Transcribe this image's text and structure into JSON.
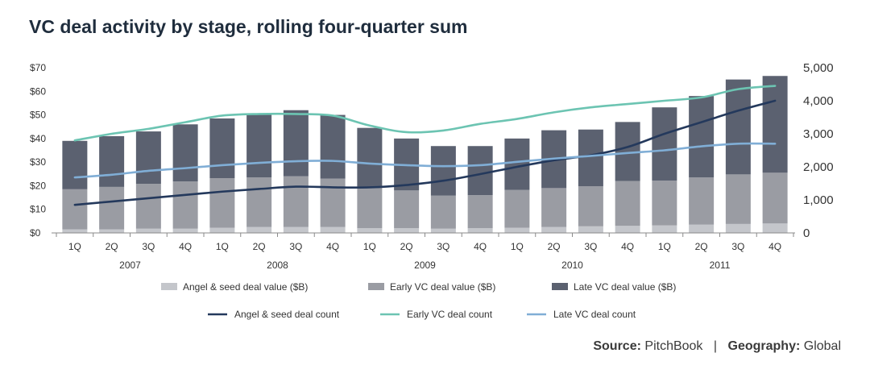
{
  "title": "VC deal activity by stage, rolling four-quarter sum",
  "source": {
    "source_label": "Source:",
    "source_value": "PitchBook",
    "separator": "|",
    "geography_label": "Geography:",
    "geography_value": "Global"
  },
  "colors": {
    "angel_bar": "#c4c6cb",
    "early_bar": "#9a9ca3",
    "late_bar": "#5b6170",
    "angel_line": "#24395c",
    "early_line": "#6cc4b2",
    "late_line": "#80aed6"
  },
  "chart_data": {
    "type": "bar",
    "categories": [
      "1Q",
      "2Q",
      "3Q",
      "4Q",
      "1Q",
      "2Q",
      "3Q",
      "4Q",
      "1Q",
      "2Q",
      "3Q",
      "4Q",
      "1Q",
      "2Q",
      "3Q",
      "4Q",
      "1Q",
      "2Q",
      "3Q",
      "4Q"
    ],
    "year_labels": [
      "2007",
      "2008",
      "2009",
      "2010",
      "2011"
    ],
    "stacked": true,
    "left_axis": {
      "ylim": [
        0,
        70
      ],
      "ticks": [
        "$0",
        "$10",
        "$20",
        "$30",
        "$40",
        "$50",
        "$60",
        "$70"
      ]
    },
    "right_axis": {
      "ylim": [
        0,
        5000
      ],
      "ticks": [
        "0",
        "1,000",
        "2,000",
        "3,000",
        "4,000",
        "5,000"
      ]
    },
    "series": [
      {
        "name": "Angel & seed deal value ($B)",
        "kind": "bar",
        "axis": "left",
        "values": [
          1.5,
          1.5,
          1.8,
          1.8,
          2.2,
          2.5,
          2.5,
          2.5,
          2,
          2,
          1.8,
          2,
          2.2,
          2.5,
          2.8,
          3,
          3.2,
          3.5,
          3.8,
          4
        ]
      },
      {
        "name": "Early VC deal value ($B)",
        "kind": "bar",
        "axis": "left",
        "values": [
          17,
          18,
          19,
          20,
          21,
          21,
          21.5,
          20.5,
          17,
          16,
          14,
          14,
          16,
          16.5,
          17,
          19,
          19,
          20,
          21,
          21.5
        ]
      },
      {
        "name": "Late VC deal value ($B)",
        "kind": "bar",
        "axis": "left",
        "values": [
          20.5,
          21.5,
          22.2,
          24.2,
          25.3,
          27,
          28,
          27,
          25.5,
          22,
          21,
          20.8,
          21.8,
          24.5,
          24,
          25,
          31,
          34.5,
          40.2,
          41
        ]
      },
      {
        "name": "Angel & seed deal count",
        "kind": "line",
        "axis": "right",
        "values": [
          850,
          950,
          1050,
          1150,
          1250,
          1330,
          1400,
          1380,
          1380,
          1450,
          1580,
          1780,
          2000,
          2200,
          2350,
          2600,
          3000,
          3350,
          3700,
          4000
        ]
      },
      {
        "name": "Early VC deal count",
        "kind": "line",
        "axis": "right",
        "values": [
          2800,
          3000,
          3150,
          3350,
          3550,
          3600,
          3600,
          3550,
          3250,
          3050,
          3100,
          3300,
          3450,
          3650,
          3800,
          3900,
          4000,
          4100,
          4350,
          4450
        ]
      },
      {
        "name": "Late VC deal count",
        "kind": "line",
        "axis": "right",
        "values": [
          1680,
          1760,
          1880,
          1960,
          2050,
          2120,
          2170,
          2180,
          2100,
          2050,
          2020,
          2050,
          2150,
          2250,
          2330,
          2420,
          2500,
          2620,
          2700,
          2700
        ]
      }
    ],
    "legend_position": "bottom",
    "grid": false
  }
}
